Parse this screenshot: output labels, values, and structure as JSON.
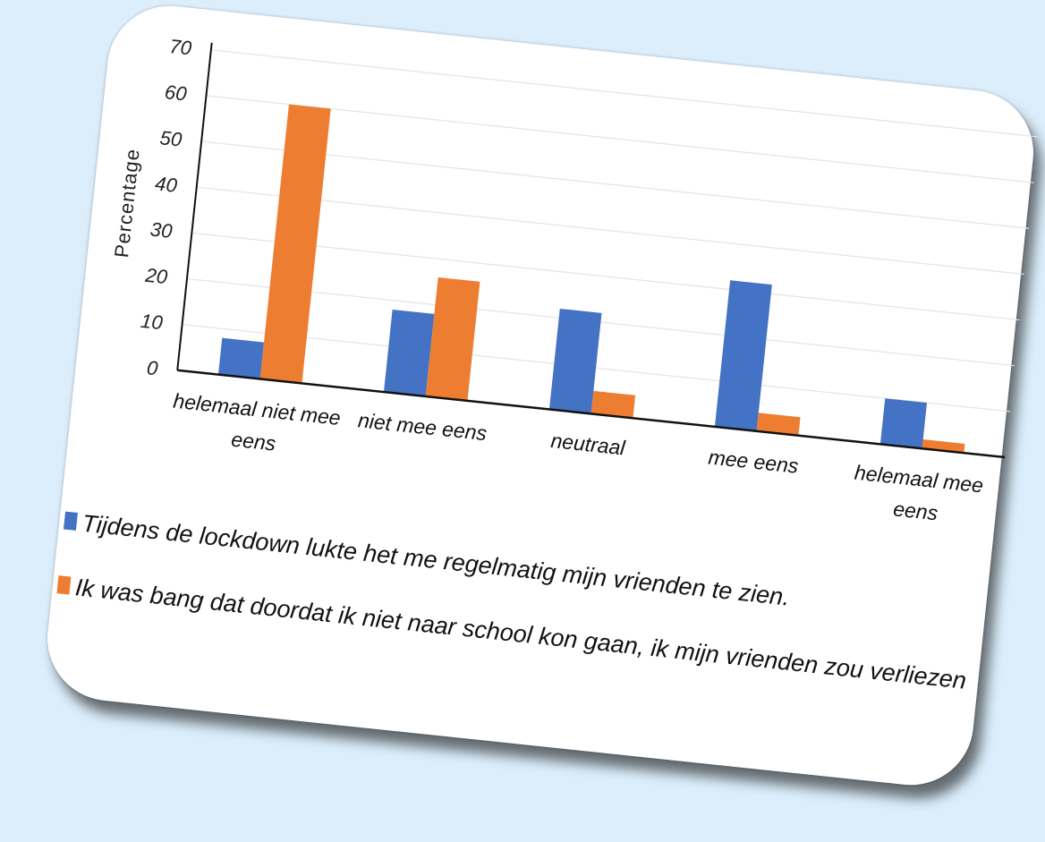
{
  "chart_data": {
    "type": "bar",
    "categories": [
      [
        "helemaal niet mee",
        "eens"
      ],
      [
        "niet mee eens"
      ],
      [
        "neutraal"
      ],
      [
        "mee eens"
      ],
      [
        "helemaal mee",
        "eens"
      ]
    ],
    "series": [
      {
        "name": "Tijdens de lockdown lukte het me regelmatig mijn vrienden te zien.",
        "color": "#4472c4",
        "values": [
          8,
          18,
          22,
          32,
          10
        ]
      },
      {
        "name": "Ik was bang dat doordat ik niet naar school kon gaan, ik mijn vrienden zou verliezen",
        "color": "#ed7d31",
        "values": [
          60,
          26,
          5,
          4,
          2
        ]
      }
    ],
    "ylabel": "Percentage",
    "ylim": [
      0,
      70
    ],
    "yticks": [
      0,
      10,
      20,
      30,
      40,
      50,
      60,
      70
    ],
    "grid": true,
    "legend_position": "bottom"
  }
}
